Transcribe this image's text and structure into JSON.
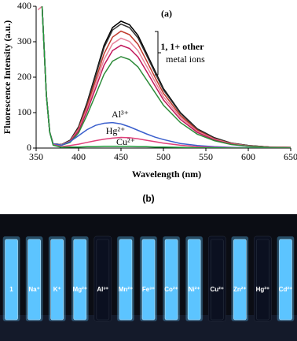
{
  "chart_data": {
    "type": "line",
    "title": "(a)",
    "x_label": "Wavelength (nm)",
    "y_label": "Fluorescence Intensity (a.u.)",
    "x": [
      352,
      357,
      362,
      366,
      370,
      380,
      390,
      400,
      410,
      420,
      430,
      440,
      450,
      460,
      470,
      480,
      490,
      500,
      520,
      540,
      560,
      580,
      600,
      625,
      650
    ],
    "series": [
      {
        "color": "#000000",
        "values": [
          null,
          400,
          150,
          45,
          12,
          10,
          22,
          60,
          128,
          208,
          290,
          340,
          358,
          348,
          318,
          268,
          218,
          168,
          100,
          54,
          29,
          14,
          7,
          3,
          2
        ]
      },
      {
        "color": "#333333",
        "values": [
          null,
          400,
          150,
          45,
          12,
          10,
          21,
          58,
          125,
          203,
          283,
          333,
          350,
          340,
          311,
          262,
          213,
          164,
          98,
          53,
          28,
          14,
          7,
          3,
          2
        ]
      },
      {
        "color": "#c0392b",
        "values": [
          null,
          400,
          150,
          45,
          12,
          9,
          20,
          55,
          118,
          191,
          266,
          313,
          330,
          320,
          293,
          247,
          200,
          155,
          92,
          50,
          26,
          13,
          6,
          3,
          2
        ]
      },
      {
        "color": "#e8839a",
        "values": [
          390,
          400,
          150,
          45,
          12,
          9,
          19,
          52,
          111,
          180,
          250,
          294,
          310,
          301,
          275,
          232,
          188,
          145,
          87,
          47,
          25,
          12,
          6,
          3,
          2
        ]
      },
      {
        "color": "#c2185b",
        "values": [
          null,
          400,
          150,
          45,
          12,
          8,
          18,
          48,
          104,
          168,
          234,
          275,
          290,
          281,
          257,
          217,
          176,
          136,
          81,
          44,
          23,
          11,
          5,
          3,
          1
        ]
      },
      {
        "color": "#2e8b3a",
        "values": [
          null,
          400,
          150,
          45,
          12,
          8,
          16,
          43,
          93,
          150,
          208,
          245,
          258,
          250,
          229,
          193,
          157,
          121,
          72,
          39,
          21,
          10,
          5,
          2,
          1
        ]
      },
      {
        "color": "#3a5fcd",
        "values": [
          null,
          400,
          150,
          45,
          12,
          8,
          18,
          35,
          52,
          64,
          70,
          72,
          68,
          60,
          50,
          40,
          31,
          24,
          13,
          7,
          4,
          2,
          1,
          0,
          0
        ]
      },
      {
        "color": "#e0407a",
        "values": [
          null,
          400,
          150,
          45,
          10,
          4,
          7,
          11,
          16,
          21,
          25,
          28,
          30,
          29,
          26,
          22,
          18,
          14,
          8,
          4,
          2,
          1,
          0,
          0,
          0
        ]
      },
      {
        "color": "#1e9a3a",
        "values": [
          null,
          400,
          150,
          45,
          8,
          2,
          3,
          3,
          4,
          4,
          5,
          5,
          5,
          5,
          4,
          4,
          3,
          3,
          2,
          1,
          1,
          0,
          0,
          0,
          0
        ]
      }
    ],
    "xlim": [
      350,
      650
    ],
    "xticks": [
      350,
      400,
      450,
      500,
      550,
      600,
      650
    ],
    "ylim": [
      0,
      400
    ],
    "yticks": [
      0,
      100,
      200,
      300,
      400
    ],
    "annotations": [
      "1, 1+ other",
      "metal ions",
      "Al³⁺",
      "Hg²⁺",
      "Cu²⁺"
    ]
  },
  "photo": {
    "label": "(b)",
    "vials": [
      {
        "label": "1",
        "color": "#5cc4ff"
      },
      {
        "label": "Na⁺",
        "color": "#5cc4ff"
      },
      {
        "label": "K⁺",
        "color": "#5cc4ff"
      },
      {
        "label": "Mg²⁺",
        "color": "#5cc4ff"
      },
      {
        "label": "Al³⁺",
        "color": "#0b1020"
      },
      {
        "label": "Mn²⁺",
        "color": "#5cc4ff"
      },
      {
        "label": "Fe³⁺",
        "color": "#5cc4ff"
      },
      {
        "label": "Co²⁺",
        "color": "#5cc4ff"
      },
      {
        "label": "Ni²⁺",
        "color": "#5cc4ff"
      },
      {
        "label": "Cu²⁺",
        "color": "#0b1020"
      },
      {
        "label": "Zn²⁺",
        "color": "#5cc4ff"
      },
      {
        "label": "Hg²⁺",
        "color": "#0b1020"
      },
      {
        "label": "Cd²⁺",
        "color": "#5cc4ff"
      }
    ]
  }
}
